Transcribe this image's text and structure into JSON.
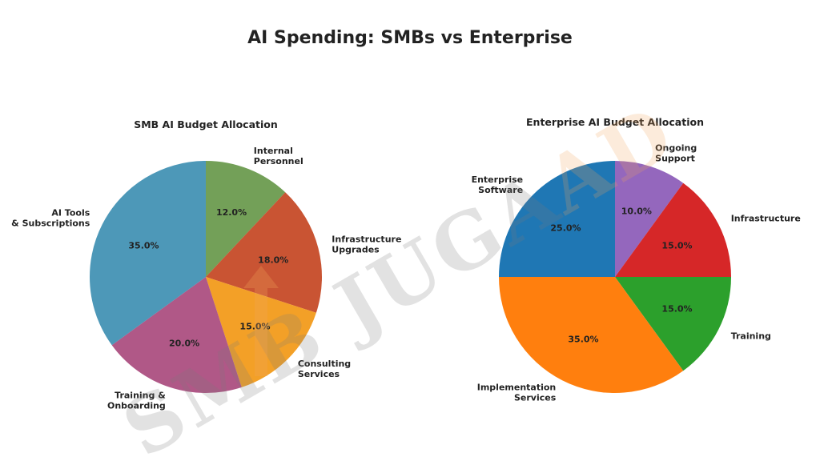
{
  "title": "AI Spending: SMBs vs Enterprise",
  "watermark": {
    "text": "SMB JUGAAD",
    "colors": [
      "#7a7a7a",
      "#f2a65a"
    ]
  },
  "chart_data": [
    {
      "type": "pie",
      "title": "SMB AI Budget Allocation",
      "start_angle_deg": 90,
      "direction": "clockwise",
      "alpha": 0.85,
      "slices": [
        {
          "label": "Internal Personnel",
          "value": 12.0,
          "pct_label": "12.0%",
          "color": "#5b8f3b"
        },
        {
          "label": "Infrastructure Upgrades",
          "value": 18.0,
          "pct_label": "18.0%",
          "color": "#c0360f"
        },
        {
          "label": "Consulting Services",
          "value": 15.0,
          "pct_label": "15.0%",
          "color": "#f18f01"
        },
        {
          "label": "Training & Onboarding",
          "value": 20.0,
          "pct_label": "20.0%",
          "color": "#a23b72"
        },
        {
          "label": "AI Tools & Subscriptions",
          "value": 35.0,
          "pct_label": "35.0%",
          "color": "#2e86ab"
        }
      ]
    },
    {
      "type": "pie",
      "title": "Enterprise AI Budget Allocation",
      "start_angle_deg": 90,
      "direction": "clockwise",
      "alpha": 1.0,
      "slices": [
        {
          "label": "Ongoing Support",
          "value": 10.0,
          "pct_label": "10.0%",
          "color": "#9467bd"
        },
        {
          "label": "Infrastructure",
          "value": 15.0,
          "pct_label": "15.0%",
          "color": "#d62728"
        },
        {
          "label": "Training",
          "value": 15.0,
          "pct_label": "15.0%",
          "color": "#2ca02c"
        },
        {
          "label": "Implementation Services",
          "value": 35.0,
          "pct_label": "35.0%",
          "color": "#ff7f0e"
        },
        {
          "label": "Enterprise Software",
          "value": 25.0,
          "pct_label": "25.0%",
          "color": "#1f77b4"
        }
      ]
    }
  ]
}
